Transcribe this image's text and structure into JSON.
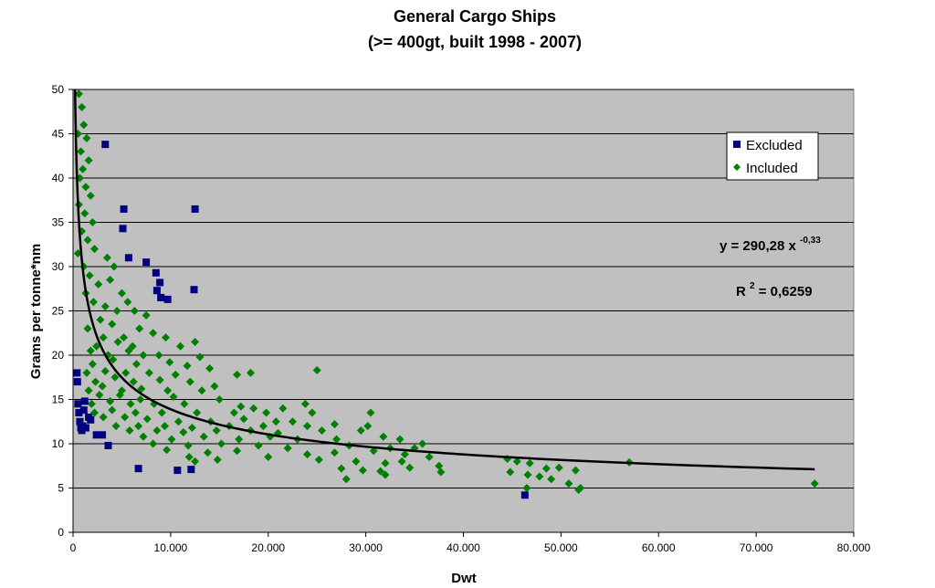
{
  "chart_data": {
    "type": "scatter",
    "title": "General Cargo Ships",
    "subtitle": "(>= 400gt, built 1998 - 2007)",
    "xlabel": "Dwt",
    "ylabel": "Grams per tonne*nm",
    "xlim": [
      0,
      80000
    ],
    "ylim": [
      0,
      50
    ],
    "x_ticks": [
      0,
      10000,
      20000,
      30000,
      40000,
      50000,
      60000,
      70000,
      80000
    ],
    "x_tick_labels": [
      "0",
      "10.000",
      "20.000",
      "30.000",
      "40.000",
      "50.000",
      "60.000",
      "70.000",
      "80.000"
    ],
    "y_ticks": [
      0,
      5,
      10,
      15,
      20,
      25,
      30,
      35,
      40,
      45,
      50
    ],
    "y_tick_labels": [
      "0",
      "5",
      "10",
      "15",
      "20",
      "25",
      "30",
      "35",
      "40",
      "45",
      "50"
    ],
    "grid": "horizontal",
    "plot_background": "#c0c0c0",
    "legend_position": "top-right",
    "series": [
      {
        "name": "Excluded",
        "marker": "square",
        "color": "#000080",
        "points": [
          [
            3300,
            43.8
          ],
          [
            5200,
            36.5
          ],
          [
            5100,
            34.3
          ],
          [
            12500,
            36.5
          ],
          [
            5700,
            31.0
          ],
          [
            7500,
            30.5
          ],
          [
            8500,
            29.3
          ],
          [
            8900,
            28.2
          ],
          [
            8600,
            27.3
          ],
          [
            9000,
            26.5
          ],
          [
            9700,
            26.3
          ],
          [
            12400,
            27.4
          ],
          [
            400,
            18.0
          ],
          [
            450,
            17.0
          ],
          [
            500,
            14.5
          ],
          [
            600,
            13.5
          ],
          [
            700,
            12.5
          ],
          [
            800,
            11.8
          ],
          [
            900,
            11.5
          ],
          [
            1000,
            12.0
          ],
          [
            1100,
            13.8
          ],
          [
            1200,
            14.8
          ],
          [
            1300,
            11.8
          ],
          [
            1600,
            13.0
          ],
          [
            1800,
            12.7
          ],
          [
            2400,
            11.0
          ],
          [
            3000,
            11.0
          ],
          [
            3600,
            9.8
          ],
          [
            6700,
            7.2
          ],
          [
            10700,
            7.0
          ],
          [
            12100,
            7.1
          ],
          [
            46300,
            4.2
          ]
        ]
      },
      {
        "name": "Included",
        "marker": "diamond",
        "color": "#008000",
        "points": [
          [
            600,
            49.5
          ],
          [
            900,
            48.0
          ],
          [
            1100,
            46.0
          ],
          [
            500,
            45.0
          ],
          [
            1400,
            44.5
          ],
          [
            800,
            43.0
          ],
          [
            1600,
            42.0
          ],
          [
            1000,
            41.0
          ],
          [
            700,
            40.0
          ],
          [
            1300,
            39.0
          ],
          [
            1800,
            38.0
          ],
          [
            600,
            37.0
          ],
          [
            1200,
            36.0
          ],
          [
            2000,
            35.0
          ],
          [
            900,
            34.0
          ],
          [
            1500,
            33.0
          ],
          [
            500,
            31.5
          ],
          [
            2200,
            32.0
          ],
          [
            1100,
            30.0
          ],
          [
            1700,
            29.0
          ],
          [
            3500,
            31.0
          ],
          [
            4200,
            30.0
          ],
          [
            2600,
            28.0
          ],
          [
            5000,
            27.0
          ],
          [
            3800,
            28.5
          ],
          [
            1300,
            27.0
          ],
          [
            5600,
            26.0
          ],
          [
            2100,
            26.0
          ],
          [
            3300,
            25.5
          ],
          [
            4500,
            25.0
          ],
          [
            6300,
            25.0
          ],
          [
            7500,
            24.5
          ],
          [
            2800,
            24.0
          ],
          [
            4000,
            23.5
          ],
          [
            6800,
            23.0
          ],
          [
            1500,
            23.0
          ],
          [
            8200,
            22.5
          ],
          [
            3100,
            22.0
          ],
          [
            5200,
            22.0
          ],
          [
            9500,
            22.0
          ],
          [
            2400,
            21.0
          ],
          [
            4600,
            21.5
          ],
          [
            6100,
            21.0
          ],
          [
            11000,
            21.0
          ],
          [
            12500,
            21.5
          ],
          [
            1800,
            20.5
          ],
          [
            3600,
            20.0
          ],
          [
            5700,
            20.5
          ],
          [
            7200,
            20.0
          ],
          [
            8800,
            20.0
          ],
          [
            13000,
            19.8
          ],
          [
            2000,
            19.0
          ],
          [
            4100,
            19.5
          ],
          [
            6500,
            19.0
          ],
          [
            9900,
            19.2
          ],
          [
            11700,
            18.8
          ],
          [
            14000,
            18.5
          ],
          [
            1400,
            18.0
          ],
          [
            3300,
            18.2
          ],
          [
            5400,
            18.0
          ],
          [
            7800,
            18.0
          ],
          [
            10500,
            17.8
          ],
          [
            16800,
            17.8
          ],
          [
            18200,
            18.0
          ],
          [
            25000,
            18.3
          ],
          [
            2300,
            17.0
          ],
          [
            4300,
            17.5
          ],
          [
            6200,
            17.0
          ],
          [
            8900,
            17.2
          ],
          [
            12000,
            17.0
          ],
          [
            14500,
            16.5
          ],
          [
            1600,
            16.0
          ],
          [
            3000,
            16.5
          ],
          [
            5000,
            16.0
          ],
          [
            7000,
            16.2
          ],
          [
            9700,
            16.0
          ],
          [
            13200,
            16.0
          ],
          [
            2700,
            15.5
          ],
          [
            4800,
            15.5
          ],
          [
            6900,
            15.0
          ],
          [
            10300,
            15.3
          ],
          [
            15000,
            15.0
          ],
          [
            1900,
            14.5
          ],
          [
            3800,
            14.8
          ],
          [
            5900,
            14.5
          ],
          [
            8300,
            14.5
          ],
          [
            11400,
            14.5
          ],
          [
            17200,
            14.2
          ],
          [
            18500,
            14.0
          ],
          [
            21500,
            14.0
          ],
          [
            23800,
            14.5
          ],
          [
            2200,
            13.5
          ],
          [
            4000,
            13.8
          ],
          [
            6400,
            13.5
          ],
          [
            9100,
            13.5
          ],
          [
            12700,
            13.5
          ],
          [
            16500,
            13.5
          ],
          [
            19800,
            13.5
          ],
          [
            24500,
            13.5
          ],
          [
            3100,
            13.0
          ],
          [
            5300,
            13.0
          ],
          [
            7600,
            12.8
          ],
          [
            10800,
            12.5
          ],
          [
            14100,
            12.5
          ],
          [
            17500,
            12.8
          ],
          [
            20800,
            12.5
          ],
          [
            22500,
            12.5
          ],
          [
            30500,
            13.5
          ],
          [
            4400,
            12.0
          ],
          [
            6700,
            12.0
          ],
          [
            9400,
            12.0
          ],
          [
            12200,
            11.8
          ],
          [
            16000,
            12.0
          ],
          [
            19500,
            12.0
          ],
          [
            24000,
            12.0
          ],
          [
            26800,
            12.2
          ],
          [
            30200,
            12.0
          ],
          [
            5800,
            11.5
          ],
          [
            8600,
            11.5
          ],
          [
            11300,
            11.3
          ],
          [
            14700,
            11.5
          ],
          [
            18200,
            11.5
          ],
          [
            21000,
            11.2
          ],
          [
            25500,
            11.5
          ],
          [
            29500,
            11.5
          ],
          [
            7200,
            10.8
          ],
          [
            10100,
            10.5
          ],
          [
            13400,
            10.8
          ],
          [
            17000,
            10.5
          ],
          [
            20200,
            10.8
          ],
          [
            23000,
            10.5
          ],
          [
            27000,
            10.5
          ],
          [
            31800,
            10.8
          ],
          [
            33500,
            10.5
          ],
          [
            35800,
            10.0
          ],
          [
            8200,
            10.0
          ],
          [
            11800,
            9.8
          ],
          [
            15200,
            10.0
          ],
          [
            19000,
            9.8
          ],
          [
            22000,
            9.5
          ],
          [
            28300,
            9.8
          ],
          [
            32500,
            9.5
          ],
          [
            35000,
            9.5
          ],
          [
            9600,
            9.3
          ],
          [
            13800,
            9.0
          ],
          [
            16800,
            9.2
          ],
          [
            24000,
            8.8
          ],
          [
            26800,
            9.0
          ],
          [
            30800,
            9.2
          ],
          [
            34000,
            8.8
          ],
          [
            36500,
            8.5
          ],
          [
            11900,
            8.5
          ],
          [
            20000,
            8.5
          ],
          [
            25200,
            8.2
          ],
          [
            29000,
            8.0
          ],
          [
            32000,
            7.8
          ],
          [
            33700,
            8.0
          ],
          [
            37500,
            7.5
          ],
          [
            12500,
            8.0
          ],
          [
            14800,
            8.2
          ],
          [
            27500,
            7.2
          ],
          [
            29700,
            7.0
          ],
          [
            31500,
            6.9
          ],
          [
            34500,
            7.3
          ],
          [
            37700,
            6.8
          ],
          [
            28000,
            6.0
          ],
          [
            32000,
            6.5
          ],
          [
            44500,
            8.3
          ],
          [
            45500,
            8.0
          ],
          [
            46800,
            7.8
          ],
          [
            48500,
            7.2
          ],
          [
            49800,
            7.3
          ],
          [
            51500,
            7.0
          ],
          [
            44800,
            6.8
          ],
          [
            46600,
            6.5
          ],
          [
            47800,
            6.3
          ],
          [
            49000,
            6.0
          ],
          [
            50800,
            5.5
          ],
          [
            52000,
            5.0
          ],
          [
            46500,
            5.0
          ],
          [
            51800,
            4.8
          ],
          [
            57000,
            7.9
          ],
          [
            76000,
            5.5
          ]
        ]
      }
    ],
    "trendline": {
      "type": "power",
      "coefficient": 290.28,
      "exponent": -0.33,
      "color": "#000000"
    },
    "annotations": {
      "equation_base": "y = 290,28 x",
      "equation_exponent": "-0,33",
      "r2_base": "R",
      "r2_exponent": "2",
      "r2_value": " = 0,6259"
    }
  }
}
